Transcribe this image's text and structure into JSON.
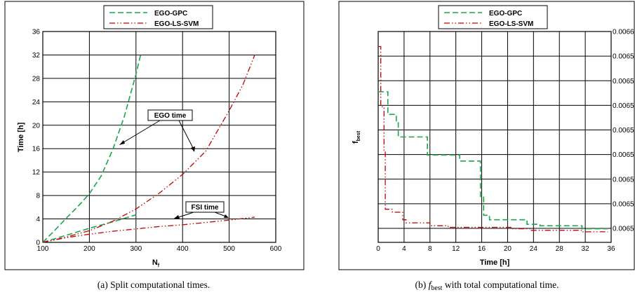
{
  "colors": {
    "gpc": "#1aa64a",
    "lssvm": "#c40000",
    "grid": "#000000"
  },
  "chart_data": [
    {
      "type": "line",
      "xlabel": "N",
      "xlabel_sub": "f",
      "ylabel": "Time [h]",
      "xlim": [
        100,
        600
      ],
      "ylim": [
        0,
        36
      ],
      "xticks": [
        100,
        200,
        300,
        400,
        500,
        600
      ],
      "yticks": [
        0,
        4,
        8,
        12,
        16,
        20,
        24,
        28,
        32,
        36
      ],
      "grid": true,
      "legend_placement": "top-center",
      "legend": [
        "EGO-GPC",
        "EGO-LS-SVM"
      ],
      "annotations": [
        "EGO time",
        "FSI time"
      ],
      "caption": "(a)  Split computational times.",
      "series": [
        {
          "name": "EGO-GPC",
          "kind": "EGO time",
          "style": "dashed",
          "x": [
            100,
            125,
            150,
            175,
            200,
            225,
            250,
            275,
            300,
            310
          ],
          "y": [
            0,
            2.0,
            4.1,
            6.1,
            8.3,
            11.3,
            15.8,
            21.5,
            28.7,
            32
          ]
        },
        {
          "name": "EGO-GPC",
          "kind": "FSI time",
          "style": "dashed",
          "x": [
            100,
            150,
            200,
            250,
            300
          ],
          "y": [
            0,
            1.2,
            2.4,
            3.5,
            4.7
          ]
        },
        {
          "name": "EGO-LS-SVM",
          "kind": "EGO time",
          "style": "dashdot",
          "x": [
            100,
            150,
            200,
            250,
            300,
            350,
            400,
            450,
            500,
            530,
            555
          ],
          "y": [
            0,
            0.9,
            2.0,
            3.6,
            5.7,
            8.4,
            11.6,
            15.6,
            22.5,
            27.0,
            32
          ]
        },
        {
          "name": "EGO-LS-SVM",
          "kind": "FSI time",
          "style": "dashdot",
          "x": [
            100,
            150,
            200,
            250,
            300,
            350,
            400,
            450,
            500,
            555
          ],
          "y": [
            0,
            0.8,
            1.4,
            1.9,
            2.3,
            2.7,
            3.0,
            3.4,
            3.8,
            4.3
          ]
        }
      ]
    },
    {
      "type": "line",
      "xlabel": "Time [h]",
      "ylabel": "f",
      "ylabel_sub": "best",
      "xlim": [
        0,
        36
      ],
      "ylim": [
        0.0065,
        0.0066
      ],
      "xticks": [
        0,
        4,
        8,
        12,
        16,
        20,
        24,
        28,
        32,
        36
      ],
      "yticks_right": [
        "0.0065",
        "0.0065",
        "0.0065",
        "0.0065",
        "0.0065",
        "0.0065",
        "0.0065",
        "0.0065",
        "0.0066"
      ],
      "grid": true,
      "legend_placement": "top-center",
      "legend": [
        "EGO-GPC",
        "EGO-LS-SVM"
      ],
      "caption_prefix": "(b)  ",
      "caption_f": "f",
      "caption_sub": "best",
      "caption_rest": " with total computational time.",
      "series": [
        {
          "name": "EGO-GPC",
          "style": "dashed",
          "step": true,
          "x": [
            0,
            1.5,
            1.5,
            2.8,
            2.8,
            3.1,
            3.1,
            7.6,
            7.6,
            12.6,
            12.6,
            15.8,
            15.8,
            16.3,
            16.3,
            17.2,
            17.2,
            23.0,
            23.0,
            25.0,
            25.0,
            31.5,
            31.5,
            35.5
          ],
          "y": [
            0.00656,
            0.00656,
            0.006545,
            0.006545,
            0.00654,
            0.00654,
            0.00653,
            0.00653,
            0.006518,
            0.006518,
            0.006514,
            0.006514,
            0.00649,
            0.00649,
            0.006478,
            0.006478,
            0.006475,
            0.006475,
            0.006472,
            0.006472,
            0.006471,
            0.006471,
            0.006469,
            0.006469
          ]
        },
        {
          "name": "EGO-LS-SVM",
          "style": "dashdot",
          "step": true,
          "x": [
            0,
            0.4,
            0.4,
            0.9,
            0.9,
            1.1,
            1.1,
            2.2,
            2.2,
            3.8,
            3.8,
            4.3,
            4.3,
            8.0,
            8.0,
            10.8,
            10.8,
            20.5,
            20.5,
            23.5,
            23.5,
            31.6,
            31.6,
            35.5
          ],
          "y": [
            0.00659,
            0.00659,
            0.00655,
            0.00655,
            0.00652,
            0.00652,
            0.006482,
            0.006482,
            0.00648,
            0.00648,
            0.006475,
            0.006475,
            0.006473,
            0.006473,
            0.006471,
            0.006471,
            0.00647,
            0.00647,
            0.006469,
            0.006469,
            0.006468,
            0.006468,
            0.006467,
            0.006467
          ]
        }
      ]
    }
  ]
}
